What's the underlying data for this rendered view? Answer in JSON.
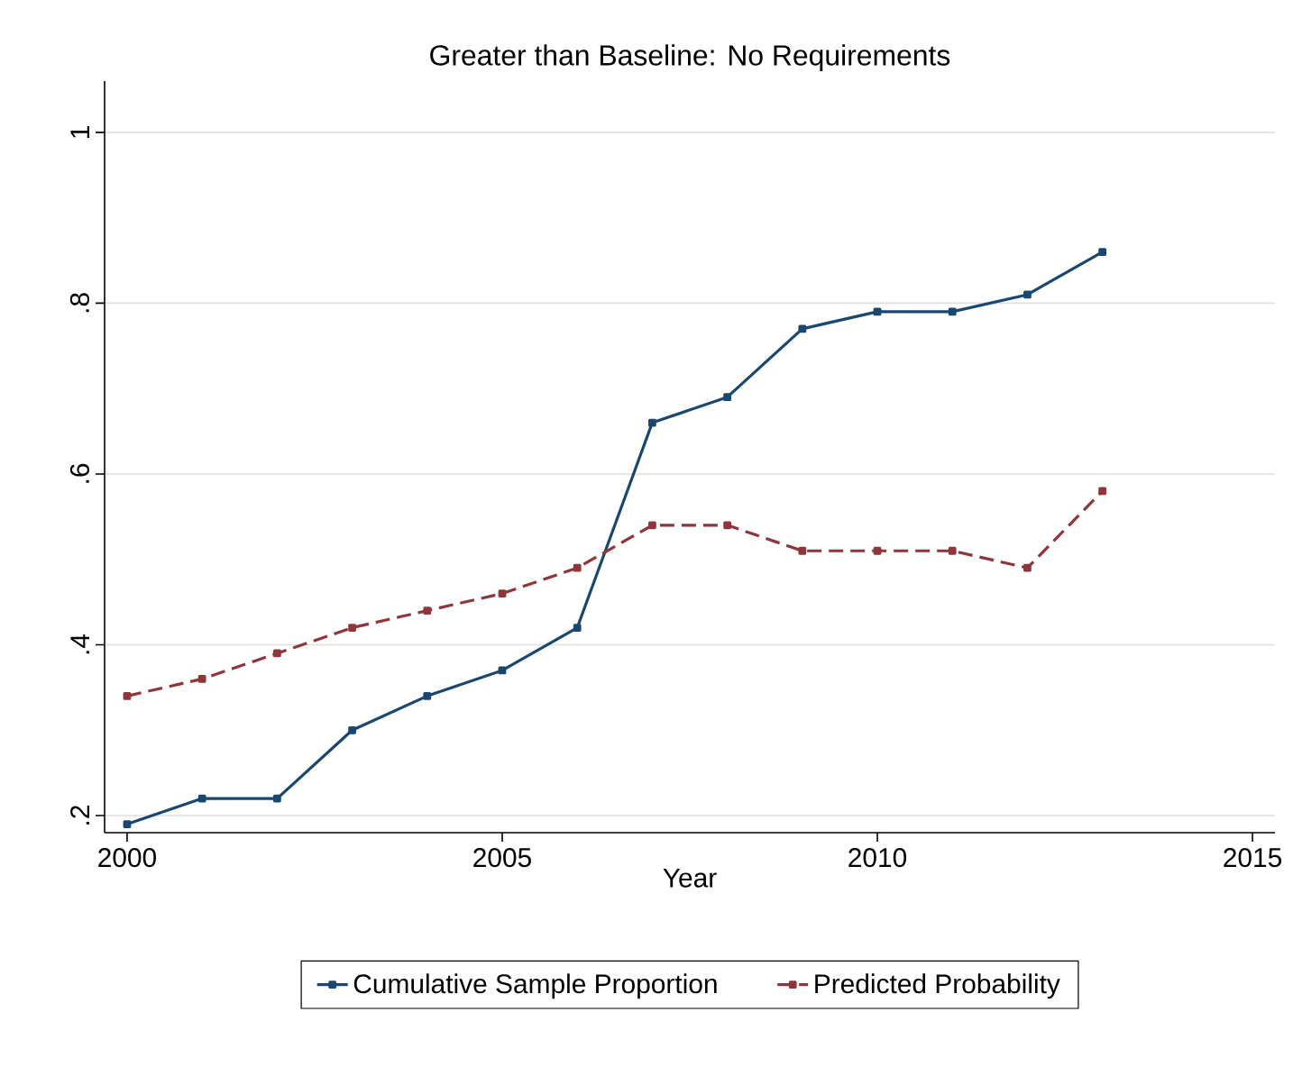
{
  "chart_data": {
    "type": "line",
    "title": "Greater than Baseline: No Requirements",
    "xlabel": "Year",
    "x": [
      2000,
      2001,
      2002,
      2003,
      2004,
      2005,
      2006,
      2007,
      2008,
      2009,
      2010,
      2011,
      2012,
      2013
    ],
    "series": [
      {
        "name": "Cumulative Sample Proportion",
        "color": "#1a476f",
        "line_style": "solid",
        "values": [
          0.19,
          0.22,
          0.22,
          0.3,
          0.34,
          0.37,
          0.42,
          0.66,
          0.69,
          0.77,
          0.79,
          0.79,
          0.81,
          0.86
        ]
      },
      {
        "name": "Predicted Probability",
        "color": "#90353b",
        "line_style": "dashed",
        "values": [
          0.34,
          0.36,
          0.39,
          0.42,
          0.44,
          0.46,
          0.49,
          0.54,
          0.54,
          0.51,
          0.51,
          0.51,
          0.49,
          0.58
        ]
      }
    ],
    "xlim": [
      1999.7,
      2015.3
    ],
    "ylim": [
      0.18,
      1.06
    ],
    "xticks": [
      2000,
      2005,
      2010,
      2015
    ],
    "yticks": [
      {
        "value": 0.2,
        "label": ".2"
      },
      {
        "value": 0.4,
        "label": ".4"
      },
      {
        "value": 0.6,
        "label": ".6"
      },
      {
        "value": 0.8,
        "label": ".8"
      },
      {
        "value": 1,
        "label": "1"
      }
    ],
    "grid": "y",
    "legend": "bottom",
    "marker": "square"
  }
}
